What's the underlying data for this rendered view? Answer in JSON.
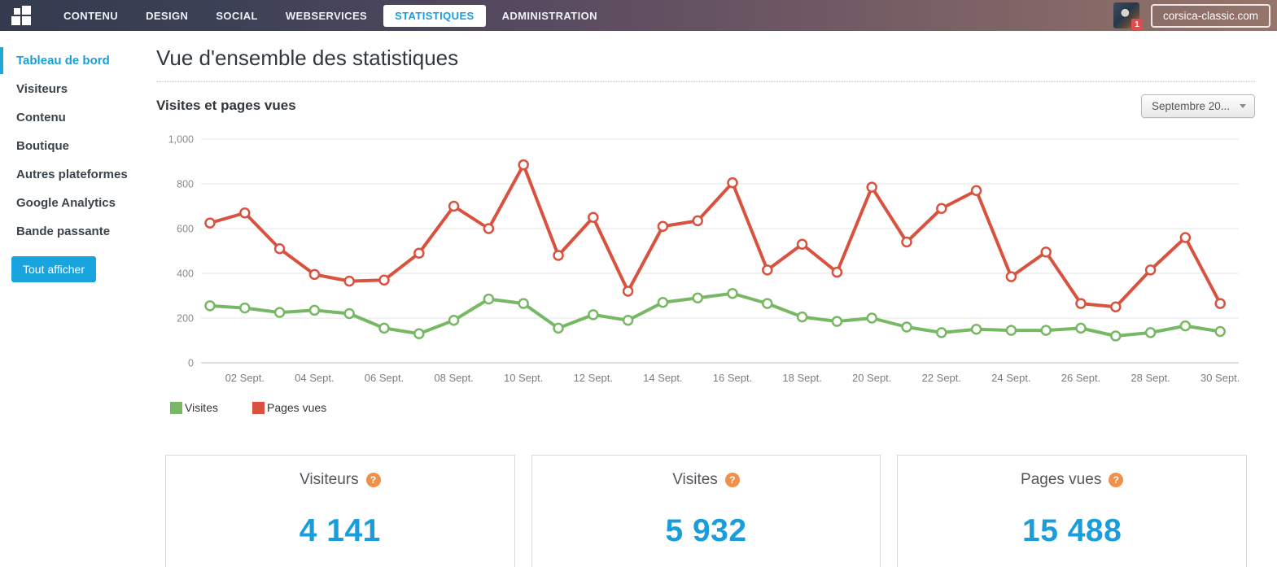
{
  "nav": {
    "items": [
      {
        "label": "CONTENU",
        "active": false
      },
      {
        "label": "DESIGN",
        "active": false
      },
      {
        "label": "SOCIAL",
        "active": false
      },
      {
        "label": "WEBSERVICES",
        "active": false
      },
      {
        "label": "STATISTIQUES",
        "active": true
      },
      {
        "label": "ADMINISTRATION",
        "active": false
      }
    ],
    "avatar_badge": "1",
    "domain_button": "corsica-classic.com"
  },
  "sidebar": {
    "items": [
      {
        "label": "Tableau de bord",
        "active": true
      },
      {
        "label": "Visiteurs",
        "active": false
      },
      {
        "label": "Contenu",
        "active": false
      },
      {
        "label": "Boutique",
        "active": false
      },
      {
        "label": "Autres plateformes",
        "active": false
      },
      {
        "label": "Google Analytics",
        "active": false
      },
      {
        "label": "Bande passante",
        "active": false
      }
    ],
    "show_all_button": "Tout afficher"
  },
  "main": {
    "page_title": "Vue d'ensemble des statistiques",
    "section_title": "Visites et pages vues",
    "period_dropdown": "Septembre 20..."
  },
  "chart_data": {
    "type": "line",
    "x": [
      1,
      2,
      3,
      4,
      5,
      6,
      7,
      8,
      9,
      10,
      11,
      12,
      13,
      14,
      15,
      16,
      17,
      18,
      19,
      20,
      21,
      22,
      23,
      24,
      25,
      26,
      27,
      28,
      29,
      30
    ],
    "x_tick_days": [
      2,
      4,
      6,
      8,
      10,
      12,
      14,
      16,
      18,
      20,
      22,
      24,
      26,
      28,
      30
    ],
    "x_tick_labels": [
      "02 Sept.",
      "04 Sept.",
      "06 Sept.",
      "08 Sept.",
      "10 Sept.",
      "12 Sept.",
      "14 Sept.",
      "16 Sept.",
      "18 Sept.",
      "20 Sept.",
      "22 Sept.",
      "24 Sept.",
      "26 Sept.",
      "28 Sept.",
      "30 Sept."
    ],
    "series": [
      {
        "name": "Visites",
        "color": "#76b863",
        "values": [
          255,
          245,
          225,
          235,
          220,
          155,
          130,
          190,
          285,
          265,
          155,
          215,
          190,
          270,
          290,
          310,
          265,
          205,
          185,
          200,
          160,
          135,
          150,
          145,
          145,
          155,
          120,
          135,
          165,
          140
        ]
      },
      {
        "name": "Pages vues",
        "color": "#d9523f",
        "values": [
          625,
          670,
          510,
          395,
          365,
          370,
          490,
          700,
          600,
          885,
          480,
          650,
          320,
          610,
          635,
          805,
          415,
          530,
          405,
          785,
          540,
          690,
          770,
          385,
          495,
          265,
          250,
          415,
          560,
          265
        ]
      }
    ],
    "ylim": [
      0,
      1000
    ],
    "yticks": [
      0,
      200,
      400,
      600,
      800,
      1000
    ],
    "ytick_labels": [
      "0",
      "200",
      "400",
      "600",
      "800",
      "1,000"
    ],
    "grid": true,
    "legend_position": "bottom"
  },
  "cards": [
    {
      "title": "Visiteurs",
      "value": "4 141"
    },
    {
      "title": "Visites",
      "value": "5 932"
    },
    {
      "title": "Pages vues",
      "value": "15 488"
    }
  ],
  "colors": {
    "accent_blue": "#1a9edb",
    "button_blue": "#17a4df",
    "help_orange": "#f0914b",
    "badge_red": "#e14b4b",
    "grid_line": "#e6e6e6",
    "axis_line": "#bfbfbf",
    "tick_text": "#8b8b8b"
  }
}
